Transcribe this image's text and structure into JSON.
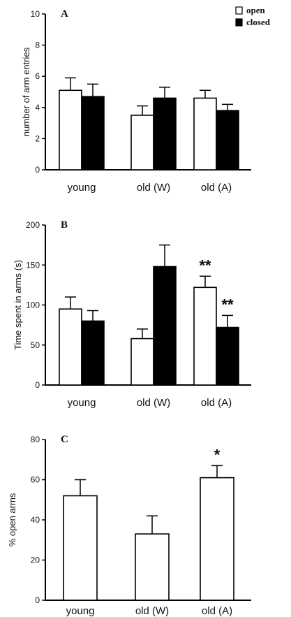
{
  "legend": {
    "position": "top-right",
    "items": [
      {
        "label": "open",
        "color": "#ffffff"
      },
      {
        "label": "closed",
        "color": "#000000"
      }
    ]
  },
  "chart_data": [
    {
      "type": "bar",
      "panel": "A",
      "ylabel": "number of arm entries",
      "ylim": [
        0,
        10
      ],
      "yticks": [
        0,
        2,
        4,
        6,
        8,
        10
      ],
      "categories": [
        "young",
        "old (W)",
        "old (A)"
      ],
      "series": [
        {
          "name": "open",
          "color": "#ffffff",
          "values": [
            5.1,
            3.5,
            4.6
          ],
          "errors": [
            0.8,
            0.6,
            0.5
          ]
        },
        {
          "name": "closed",
          "color": "#000000",
          "values": [
            4.7,
            4.6,
            3.8
          ],
          "errors": [
            0.8,
            0.7,
            0.4
          ]
        }
      ],
      "annotations": []
    },
    {
      "type": "bar",
      "panel": "B",
      "ylabel": "Time spent in arms (s)",
      "ylim": [
        0,
        200
      ],
      "yticks": [
        0,
        50,
        100,
        150,
        200
      ],
      "categories": [
        "young",
        "old (W)",
        "old (A)"
      ],
      "series": [
        {
          "name": "open",
          "color": "#ffffff",
          "values": [
            95,
            58,
            122
          ],
          "errors": [
            15,
            12,
            14
          ]
        },
        {
          "name": "closed",
          "color": "#000000",
          "values": [
            80,
            148,
            72
          ],
          "errors": [
            13,
            27,
            15
          ]
        }
      ],
      "annotations": [
        {
          "text": "**",
          "category": "old (A)",
          "series": "open"
        },
        {
          "text": "**",
          "category": "old (A)",
          "series": "closed"
        }
      ]
    },
    {
      "type": "bar",
      "panel": "C",
      "ylabel": "% open arms",
      "ylim": [
        0,
        80
      ],
      "yticks": [
        0,
        20,
        40,
        60,
        80
      ],
      "categories": [
        "young",
        "old (W)",
        "old (A)"
      ],
      "series": [
        {
          "values": [
            52,
            33,
            61
          ],
          "errors": [
            8,
            9,
            6
          ],
          "color": "#ffffff"
        }
      ],
      "annotations": [
        {
          "text": "*",
          "category": "old (A)",
          "series": 0
        }
      ]
    }
  ]
}
